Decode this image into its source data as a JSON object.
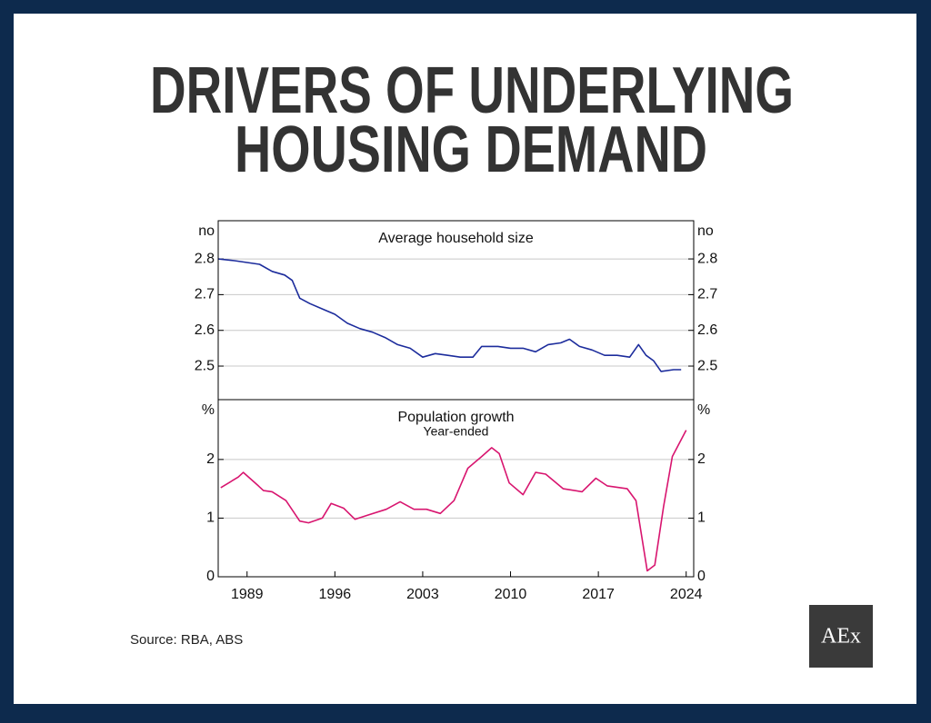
{
  "title_lines": [
    "DRIVERS OF UNDERLYING",
    "HOUSING DEMAND"
  ],
  "source": "Source: RBA, ABS",
  "logo": "AEx",
  "chart_data": [
    {
      "type": "line",
      "title": "Average household size",
      "y_unit": "no",
      "xlim": [
        1986.7,
        2024.6
      ],
      "ylim": [
        2.406,
        2.907
      ],
      "yticks": [
        2.5,
        2.6,
        2.7,
        2.8
      ],
      "grid": true,
      "x": [
        1986.7,
        1988,
        1989,
        1990,
        1991,
        1992,
        1992.6,
        1993.2,
        1994,
        1995,
        1996,
        1997,
        1998,
        1999,
        2000,
        2001,
        2002,
        2003,
        2004,
        2005,
        2006,
        2007,
        2007.7,
        2009,
        2010,
        2011,
        2012,
        2013,
        2014,
        2014.7,
        2015.5,
        2016.5,
        2017.5,
        2018.5,
        2019.5,
        2020.2,
        2020.8,
        2021.4,
        2022,
        2023,
        2023.6
      ],
      "series": [
        {
          "name": "Average household size",
          "color": "#1c2c9c",
          "values": [
            2.8,
            2.795,
            2.79,
            2.785,
            2.765,
            2.755,
            2.74,
            2.69,
            2.675,
            2.66,
            2.645,
            2.62,
            2.605,
            2.595,
            2.58,
            2.56,
            2.55,
            2.525,
            2.535,
            2.53,
            2.525,
            2.525,
            2.555,
            2.555,
            2.55,
            2.55,
            2.54,
            2.56,
            2.565,
            2.575,
            2.555,
            2.545,
            2.53,
            2.53,
            2.525,
            2.56,
            2.53,
            2.515,
            2.485,
            2.49,
            2.49
          ]
        }
      ]
    },
    {
      "type": "line",
      "title": "Population growth",
      "subtitle": "Year-ended",
      "y_unit": "%",
      "xlim": [
        1986.7,
        2024.6
      ],
      "xticks": [
        1989,
        1996,
        2003,
        2010,
        2017,
        2024
      ],
      "ylim": [
        0,
        3.02
      ],
      "yticks": [
        0,
        1,
        2
      ],
      "grid": true,
      "x": [
        1986.9,
        1988.3,
        1988.7,
        1989.9,
        1990.3,
        1991.0,
        1992.1,
        1993.2,
        1993.9,
        1995.0,
        1995.7,
        1996.7,
        1997.6,
        1998.6,
        2000.1,
        2001.2,
        2002.3,
        2003.3,
        2004.4,
        2005.5,
        2006.6,
        2007.7,
        2008.5,
        2009.1,
        2009.9,
        2011.0,
        2012.0,
        2012.8,
        2014.2,
        2015.7,
        2016.8,
        2017.7,
        2019.3,
        2020.0,
        2020.9,
        2021.5,
        2022.2,
        2022.9,
        2024.0
      ],
      "series": [
        {
          "name": "Population growth",
          "color": "#d8156f",
          "values": [
            1.52,
            1.7,
            1.78,
            1.55,
            1.47,
            1.45,
            1.3,
            0.95,
            0.92,
            1.0,
            1.25,
            1.17,
            0.98,
            1.05,
            1.15,
            1.28,
            1.15,
            1.15,
            1.08,
            1.3,
            1.85,
            2.05,
            2.2,
            2.1,
            1.6,
            1.4,
            1.78,
            1.75,
            1.5,
            1.45,
            1.68,
            1.55,
            1.5,
            1.3,
            0.1,
            0.2,
            1.2,
            2.05,
            2.5
          ]
        }
      ]
    }
  ]
}
